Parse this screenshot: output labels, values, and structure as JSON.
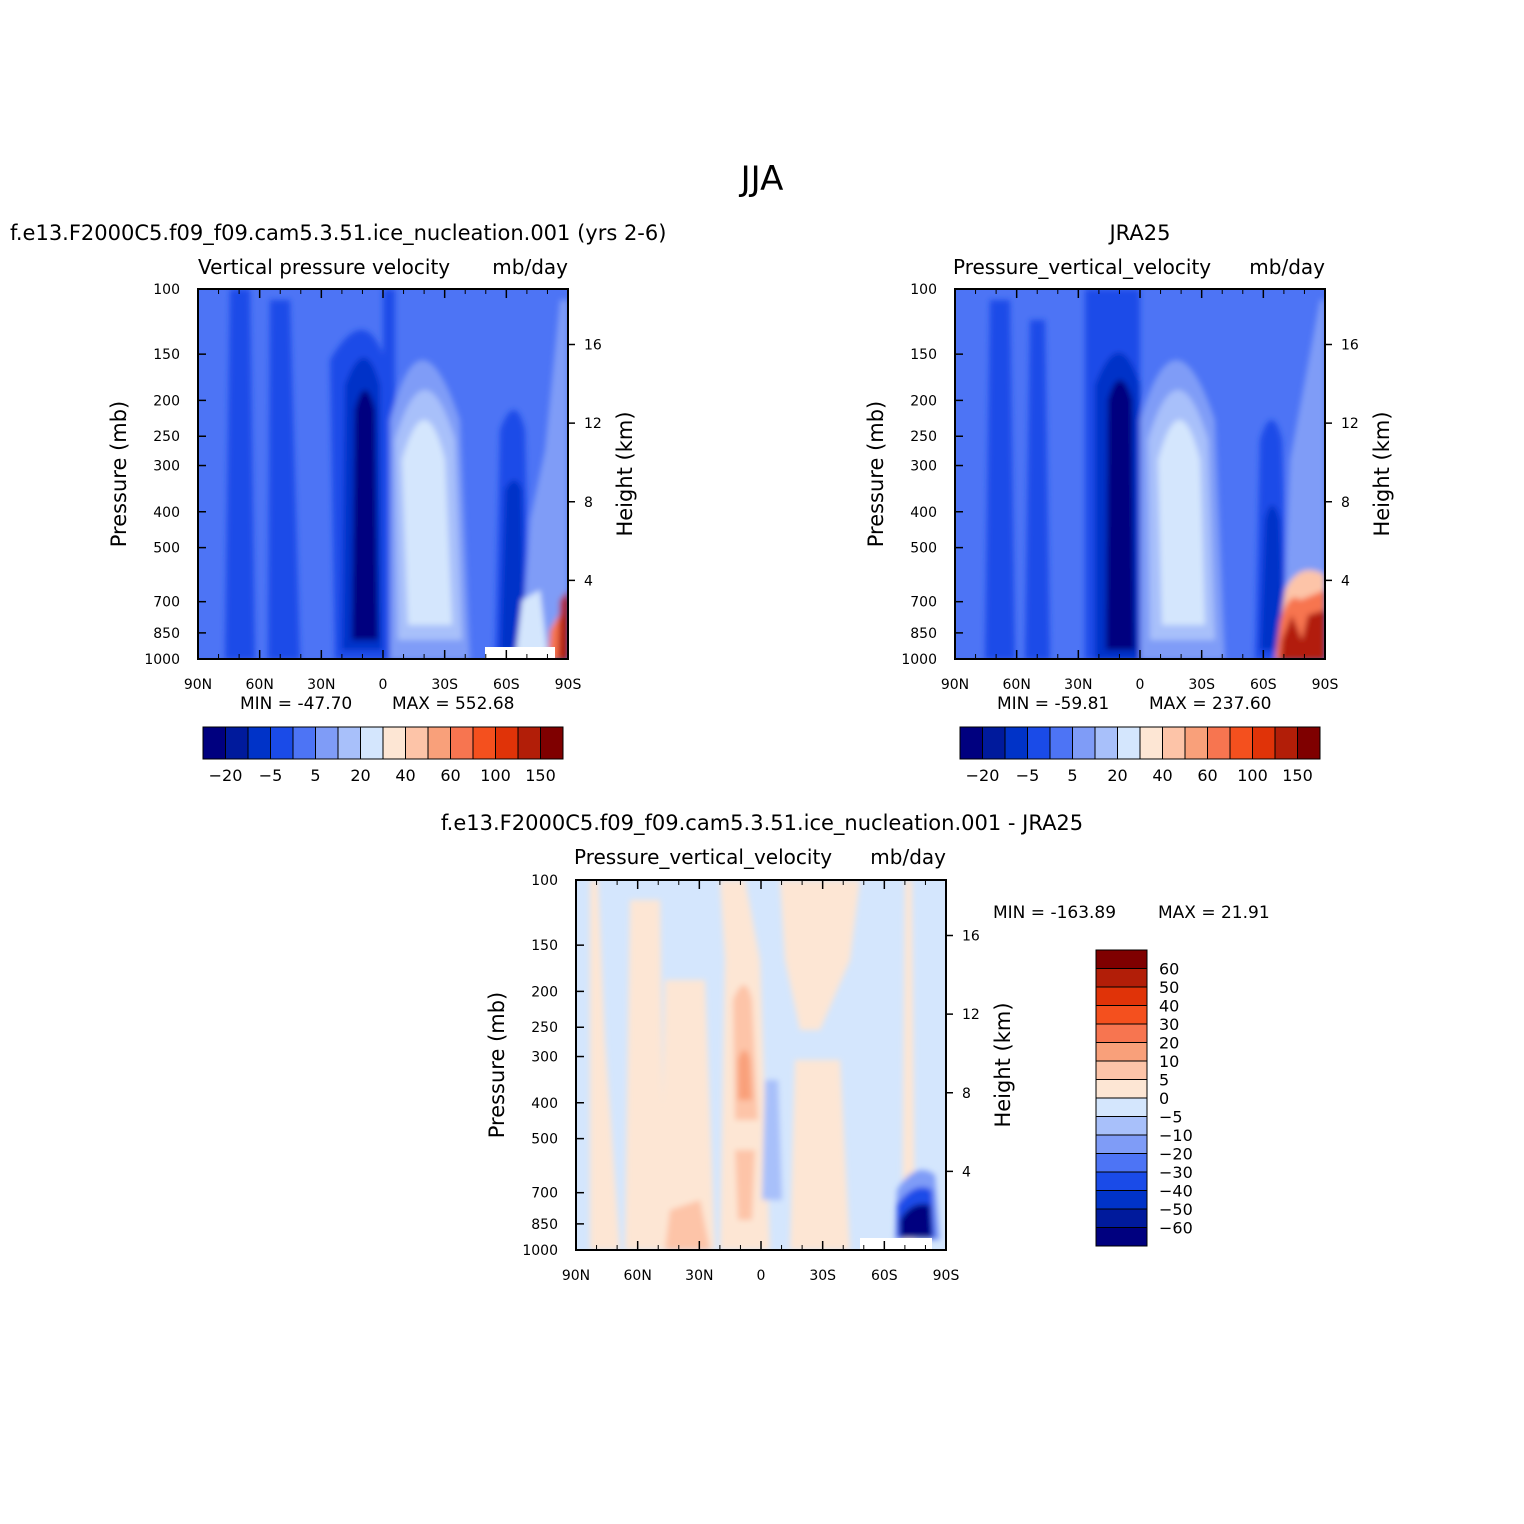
{
  "chart_data": {
    "type": "contour",
    "title": "JJA",
    "panels": [
      {
        "id": "model",
        "case": "f.e13.F2000C5.f09_f09.cam5.3.51.ice_nucleation.001 (yrs 2-6)",
        "left_title": "Vertical pressure velocity",
        "units": "mb/day",
        "ylabel": "Pressure (mb)",
        "y2label": "Height (km)",
        "xticks": [
          "90N",
          "60N",
          "30N",
          "0",
          "30S",
          "60S",
          "90S"
        ],
        "xlim": [
          90,
          -90
        ],
        "yticks": [
          "100",
          "150",
          "200",
          "250",
          "300",
          "400",
          "500",
          "700",
          "850",
          "1000"
        ],
        "ylim": [
          1000,
          100
        ],
        "y2ticks": [
          "16",
          "12",
          "8",
          "4"
        ],
        "min_label": "MIN = -47.70",
        "max_label": "MAX = 552.68",
        "min": -47.7,
        "max": 552.68,
        "colorbar_levels": [
          -40,
          -30,
          -20,
          -10,
          -5,
          0,
          5,
          10,
          20,
          30,
          40,
          50,
          60,
          80,
          100,
          125,
          150
        ],
        "colorbar_labels": [
          "-20",
          "-5",
          "5",
          "20",
          "40",
          "60",
          "100",
          "150"
        ]
      },
      {
        "id": "obs",
        "case": "JRA25",
        "left_title": "Pressure_vertical_velocity",
        "units": "mb/day",
        "ylabel": "Pressure (mb)",
        "y2label": "Height (km)",
        "xticks": [
          "90N",
          "60N",
          "30N",
          "0",
          "30S",
          "60S",
          "90S"
        ],
        "xlim": [
          90,
          -90
        ],
        "yticks": [
          "100",
          "150",
          "200",
          "250",
          "300",
          "400",
          "500",
          "700",
          "850",
          "1000"
        ],
        "ylim": [
          1000,
          100
        ],
        "y2ticks": [
          "16",
          "12",
          "8",
          "4"
        ],
        "min_label": "MIN = -59.81",
        "max_label": "MAX = 237.60",
        "min": -59.81,
        "max": 237.6,
        "colorbar_levels": [
          -40,
          -30,
          -20,
          -10,
          -5,
          0,
          5,
          10,
          20,
          30,
          40,
          50,
          60,
          80,
          100,
          125,
          150
        ],
        "colorbar_labels": [
          "-20",
          "-5",
          "5",
          "20",
          "40",
          "60",
          "100",
          "150"
        ]
      },
      {
        "id": "diff",
        "case": "f.e13.F2000C5.f09_f09.cam5.3.51.ice_nucleation.001 - JRA25",
        "left_title": "Pressure_vertical_velocity",
        "units": "mb/day",
        "ylabel": "Pressure (mb)",
        "y2label": "Height (km)",
        "xticks": [
          "90N",
          "60N",
          "30N",
          "0",
          "30S",
          "60S",
          "90S"
        ],
        "xlim": [
          90,
          -90
        ],
        "yticks": [
          "100",
          "150",
          "200",
          "250",
          "300",
          "400",
          "500",
          "700",
          "850",
          "1000"
        ],
        "ylim": [
          1000,
          100
        ],
        "y2ticks": [
          "16",
          "12",
          "8",
          "4"
        ],
        "min_label": "MIN = -163.89",
        "max_label": "MAX = 21.91",
        "min": -163.89,
        "max": 21.91,
        "colorbar_levels": [
          -60,
          -50,
          -40,
          -30,
          -20,
          -10,
          -5,
          0,
          5,
          10,
          20,
          30,
          40,
          50,
          60
        ],
        "colorbar_labels": [
          "60",
          "50",
          "40",
          "30",
          "20",
          "10",
          "5",
          "0",
          "-5",
          "-10",
          "-20",
          "-30",
          "-40",
          "-50",
          "-60"
        ]
      }
    ],
    "colormaps": {
      "full": [
        "#00007f",
        "#001a9c",
        "#0033c8",
        "#1a4be8",
        "#4d74f5",
        "#7f9cf7",
        "#a8c0fa",
        "#d4e6fd",
        "#fde6d4",
        "#fdc4a8",
        "#f9a07a",
        "#f77550",
        "#f4501e",
        "#e03308",
        "#b21e08",
        "#7f0000"
      ],
      "diff": [
        "#00007f",
        "#001a9c",
        "#0033c8",
        "#1a4be8",
        "#4d74f5",
        "#7f9cf7",
        "#a8c0fa",
        "#d4e6fd",
        "#fde6d4",
        "#fdc4a8",
        "#f9a07a",
        "#f77550",
        "#f4501e",
        "#e03308",
        "#b21e08",
        "#7f0000"
      ]
    }
  }
}
